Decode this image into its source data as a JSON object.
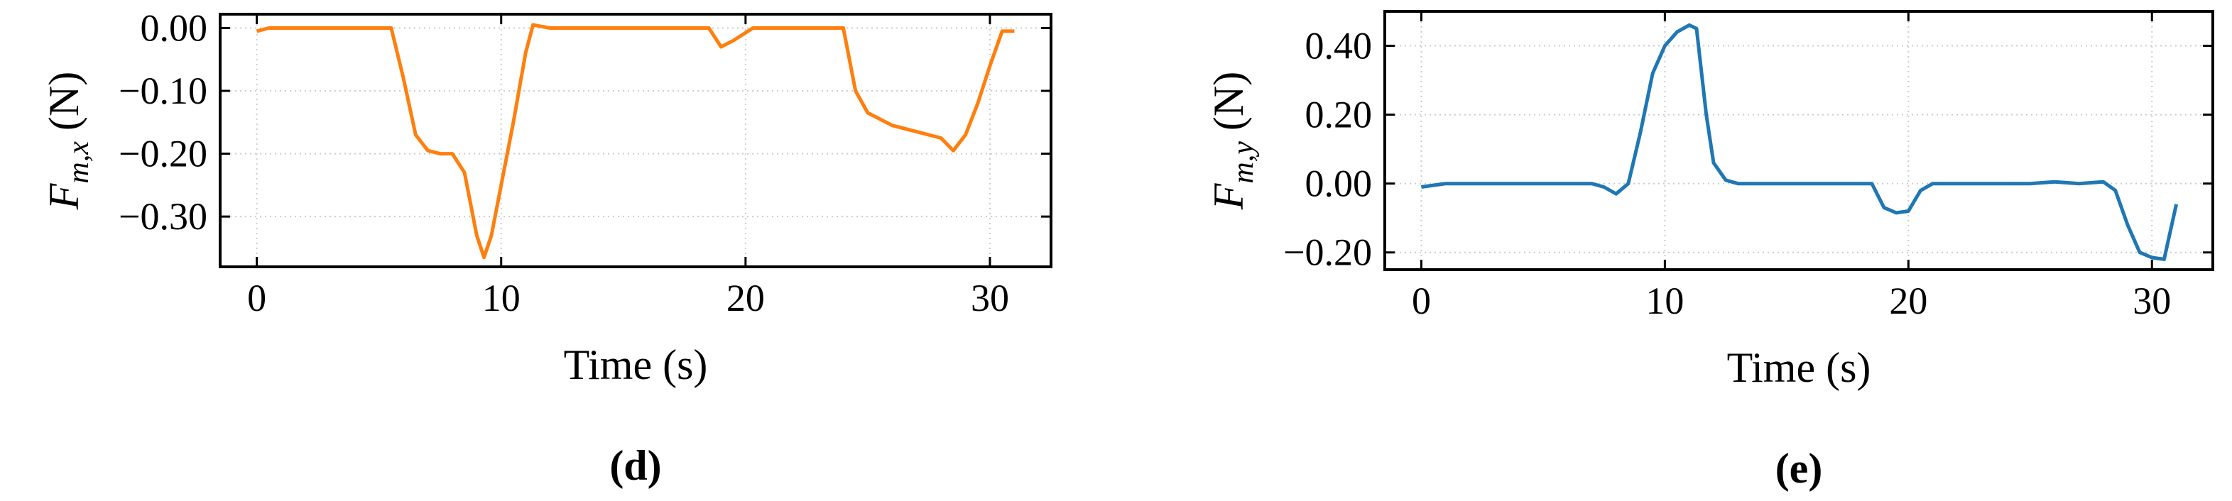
{
  "chart_data": [
    {
      "type": "line",
      "caption": "(d)",
      "xlabel": "Time (s)",
      "ylabel": {
        "symbol": "F",
        "subscript": "m,x",
        "unit": "(N)"
      },
      "xlim": [
        -1.5,
        32.5
      ],
      "xticks": [
        0,
        10,
        20,
        30
      ],
      "ylim": [
        -0.38,
        0.022
      ],
      "yticks": [
        {
          "value": -0.3,
          "label": "−0.30"
        },
        {
          "value": -0.2,
          "label": "−0.20"
        },
        {
          "value": -0.1,
          "label": "−0.10"
        },
        {
          "value": 0,
          "label": "0.00"
        }
      ],
      "grid": true,
      "series": [
        {
          "color": "#ff7f0e",
          "x": [
            0,
            0.5,
            5.5,
            6,
            6.5,
            7,
            7.5,
            8,
            8.5,
            9,
            9.3,
            9.6,
            10,
            10.5,
            11,
            11.3,
            12,
            18.5,
            19,
            19.5,
            20.3,
            24,
            24.5,
            25,
            26,
            27,
            28,
            28.5,
            29,
            29.5,
            30,
            30.5,
            31
          ],
          "values": [
            -0.005,
            0,
            0,
            -0.08,
            -0.17,
            -0.195,
            -0.2,
            -0.2,
            -0.23,
            -0.33,
            -0.365,
            -0.33,
            -0.25,
            -0.15,
            -0.04,
            0.005,
            0,
            0,
            -0.03,
            -0.02,
            0,
            0,
            -0.1,
            -0.135,
            -0.155,
            -0.165,
            -0.175,
            -0.195,
            -0.17,
            -0.12,
            -0.06,
            -0.005,
            -0.005
          ]
        }
      ]
    },
    {
      "type": "line",
      "caption": "(e)",
      "xlabel": "Time (s)",
      "ylabel": {
        "symbol": "F",
        "subscript": "m,y",
        "unit": "(N)"
      },
      "xlim": [
        -1.5,
        32.5
      ],
      "xticks": [
        0,
        10,
        20,
        30
      ],
      "ylim": [
        -0.25,
        0.5
      ],
      "yticks": [
        {
          "value": -0.2,
          "label": "−0.20"
        },
        {
          "value": 0,
          "label": "0.00"
        },
        {
          "value": 0.2,
          "label": "0.20"
        },
        {
          "value": 0.4,
          "label": "0.40"
        }
      ],
      "grid": true,
      "series": [
        {
          "color": "#1f77b4",
          "x": [
            0,
            1,
            7,
            7.5,
            8,
            8.5,
            9,
            9.5,
            10,
            10.5,
            11,
            11.3,
            11.7,
            12,
            12.5,
            13,
            18.5,
            19,
            19.5,
            20,
            20.5,
            21,
            25,
            26,
            27,
            28,
            28.5,
            29,
            29.5,
            30,
            30.5,
            31
          ],
          "values": [
            -0.01,
            0,
            0,
            -0.01,
            -0.03,
            0,
            0.15,
            0.32,
            0.4,
            0.44,
            0.46,
            0.45,
            0.2,
            0.06,
            0.01,
            0,
            0,
            -0.07,
            -0.085,
            -0.08,
            -0.02,
            0,
            0,
            0.005,
            0,
            0.005,
            -0.02,
            -0.12,
            -0.2,
            -0.215,
            -0.22,
            -0.06
          ]
        }
      ]
    }
  ]
}
